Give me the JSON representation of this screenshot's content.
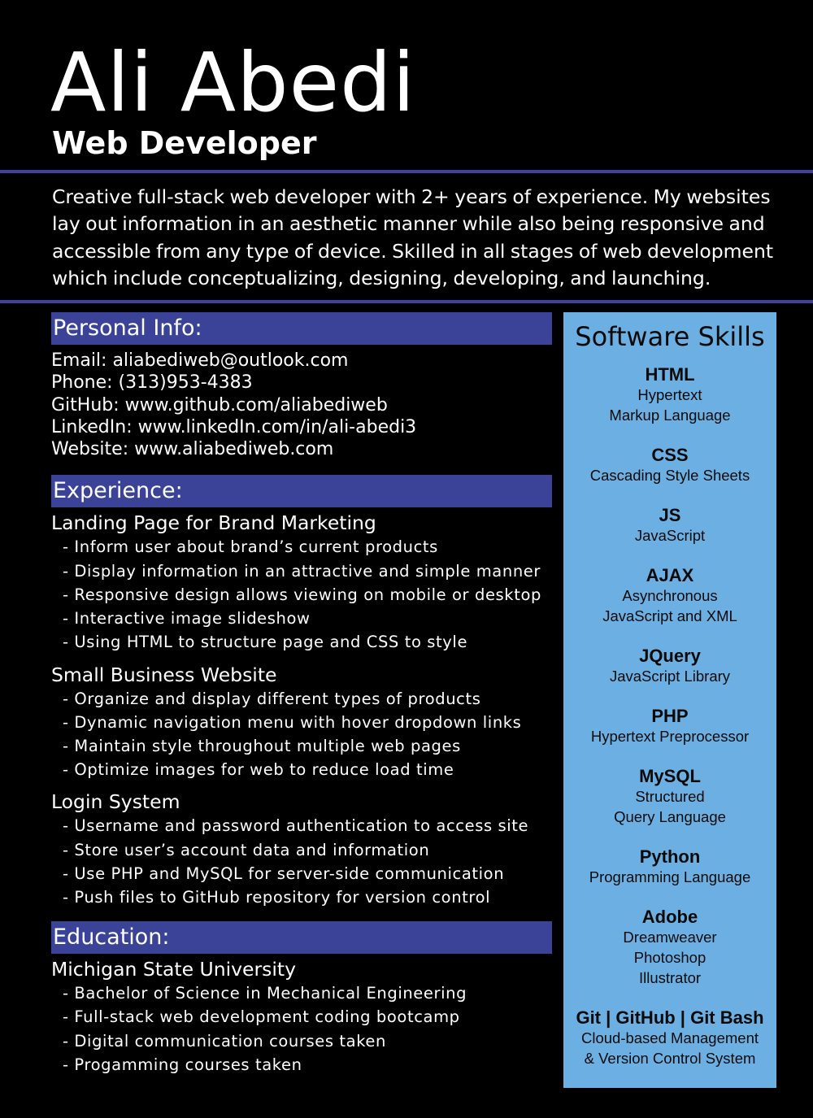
{
  "header": {
    "name": "Ali Abedi",
    "role": "Web Developer",
    "summary": "Creative full-stack web developer with 2+ years of experience. My websites lay out information in an aesthetic manner while also being responsive and accessible from any type of device.  Skilled in all stages of web development which include conceptualizing, designing, developing, and launching."
  },
  "colors": {
    "background": "#000000",
    "accent": "#3a4397",
    "skills_panel": "#6cb0e3"
  },
  "personal_info": {
    "heading": "Personal Info:",
    "items": [
      "Email: aliabediweb@outlook.com",
      "Phone: (313)953-4383",
      "GitHub: www.github.com/aliabediweb",
      "LinkedIn: www.linkedIn.com/in/ali-abedi3",
      "Website: www.aliabediweb.com"
    ]
  },
  "experience": {
    "heading": "Experience:",
    "projects": [
      {
        "title": "Landing Page for Brand Marketing",
        "bullets": [
          "- Inform user about brand’s current products",
          "- Display information in an attractive and simple manner",
          "- Responsive design allows viewing on mobile or desktop",
          "- Interactive image slideshow",
          "- Using HTML to structure page and CSS to style"
        ]
      },
      {
        "title": "Small Business Website",
        "bullets": [
          "- Organize and display different types of products",
          "- Dynamic navigation menu with hover dropdown links",
          "- Maintain style throughout multiple web pages",
          "- Optimize images for web to reduce load time"
        ]
      },
      {
        "title": "Login System",
        "bullets": [
          "- Username and password authentication to access site",
          "- Store user’s account data and information",
          "- Use PHP and MySQL for server-side communication",
          "- Push files to GitHub repository for version control"
        ]
      }
    ]
  },
  "education": {
    "heading": "Education:",
    "school": "Michigan State University",
    "bullets": [
      "- Bachelor of Science in Mechanical Engineering",
      "- Full-stack web development coding bootcamp",
      "- Digital communication courses taken",
      "- Progamming courses taken"
    ]
  },
  "skills": {
    "heading": "Software Skills",
    "items": [
      {
        "name": "HTML",
        "desc": [
          "Hypertext",
          "Markup Language"
        ]
      },
      {
        "name": "CSS",
        "desc": [
          "Cascading Style Sheets"
        ]
      },
      {
        "name": "JS",
        "desc": [
          "JavaScript"
        ]
      },
      {
        "name": "AJAX",
        "desc": [
          "Asynchronous",
          "JavaScript and XML"
        ]
      },
      {
        "name": "JQuery",
        "desc": [
          "JavaScript Library"
        ]
      },
      {
        "name": "PHP",
        "desc": [
          "Hypertext Preprocessor"
        ]
      },
      {
        "name": "MySQL",
        "desc": [
          "Structured",
          "Query Language"
        ]
      },
      {
        "name": "Python",
        "desc": [
          "Programming Language"
        ]
      },
      {
        "name": "Adobe",
        "desc": [
          "Dreamweaver",
          "Photoshop",
          "Illustrator"
        ]
      },
      {
        "name": "Git | GitHub | Git Bash",
        "desc": [
          "Cloud-based Management",
          "& Version Control System"
        ]
      }
    ]
  }
}
